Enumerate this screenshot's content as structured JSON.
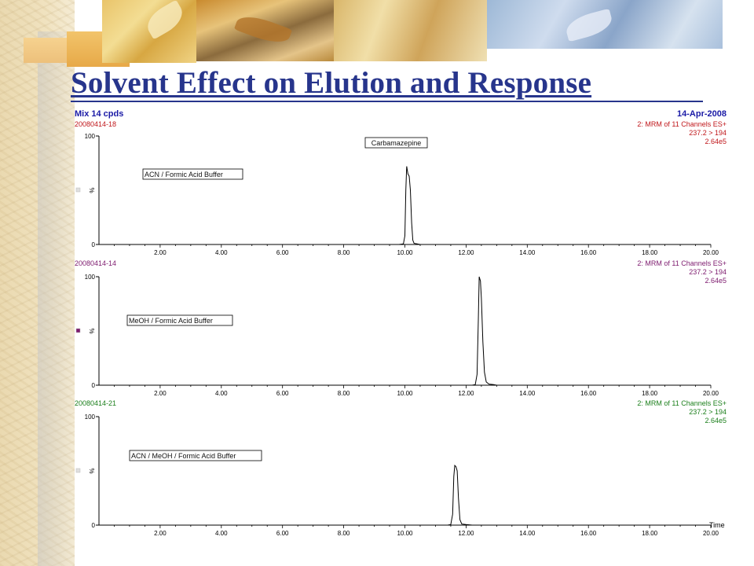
{
  "slide": {
    "title": "Solvent Effect on Elution and Response"
  },
  "header": {
    "left": "Mix 14 cpds",
    "right": "14-Apr-2008"
  },
  "colors": {
    "title": "#27358c",
    "header": "#1a1aa6",
    "panel_top_text": "#c0171b",
    "panel_mid_text": "#7d1a6e",
    "panel_bot_text": "#1b7f1b",
    "axis": "#000000"
  },
  "chart_data": {
    "type": "line",
    "x_axis": {
      "min": 0,
      "max": 20,
      "ticks": [
        "2.00",
        "4.00",
        "6.00",
        "8.00",
        "10.00",
        "12.00",
        "14.00",
        "16.00",
        "18.00",
        "20.00"
      ],
      "label": "Time"
    },
    "y_axis": {
      "min": 0,
      "max": 100,
      "ticks": [
        "0",
        "100"
      ],
      "unit_label": "%"
    },
    "annotation": "Carbamazepine",
    "panels": [
      {
        "sample_id": "20080414-18",
        "channel": "2: MRM of 11 Channels ES+",
        "transition": "237.2 > 194",
        "intensity": "2.64e5",
        "series_label": "ACN / Formic Acid Buffer",
        "color": "#c0171b",
        "points": [
          [
            9.8,
            0
          ],
          [
            9.95,
            0.5
          ],
          [
            10.0,
            8
          ],
          [
            10.03,
            50
          ],
          [
            10.06,
            72
          ],
          [
            10.1,
            65
          ],
          [
            10.14,
            63
          ],
          [
            10.18,
            50
          ],
          [
            10.22,
            20
          ],
          [
            10.26,
            4
          ],
          [
            10.3,
            1
          ],
          [
            10.4,
            0.5
          ],
          [
            10.5,
            0
          ]
        ]
      },
      {
        "sample_id": "20080414-14",
        "channel": "2: MRM of 11 Channels ES+",
        "transition": "237.2 > 194",
        "intensity": "2.64e5",
        "series_label": "MeOH / Formic Acid Buffer",
        "color": "#7d1a6e",
        "points": [
          [
            12.2,
            0
          ],
          [
            12.3,
            0.5
          ],
          [
            12.36,
            10
          ],
          [
            12.4,
            60
          ],
          [
            12.43,
            100
          ],
          [
            12.47,
            96
          ],
          [
            12.5,
            80
          ],
          [
            12.55,
            40
          ],
          [
            12.6,
            12
          ],
          [
            12.66,
            3
          ],
          [
            12.75,
            1
          ],
          [
            12.9,
            0.5
          ],
          [
            13.0,
            0
          ]
        ]
      },
      {
        "sample_id": "20080414-21",
        "channel": "2: MRM of 11 Channels ES+",
        "transition": "237.2 > 194",
        "intensity": "2.64e5",
        "series_label": "ACN / MeOH / Formic Acid Buffer",
        "color": "#1b7f1b",
        "points": [
          [
            11.4,
            0
          ],
          [
            11.5,
            0.5
          ],
          [
            11.56,
            10
          ],
          [
            11.6,
            45
          ],
          [
            11.63,
            55
          ],
          [
            11.67,
            54
          ],
          [
            11.71,
            50
          ],
          [
            11.75,
            25
          ],
          [
            11.8,
            5
          ],
          [
            11.86,
            1
          ],
          [
            12.0,
            0.5
          ],
          [
            12.2,
            0
          ]
        ]
      }
    ]
  }
}
